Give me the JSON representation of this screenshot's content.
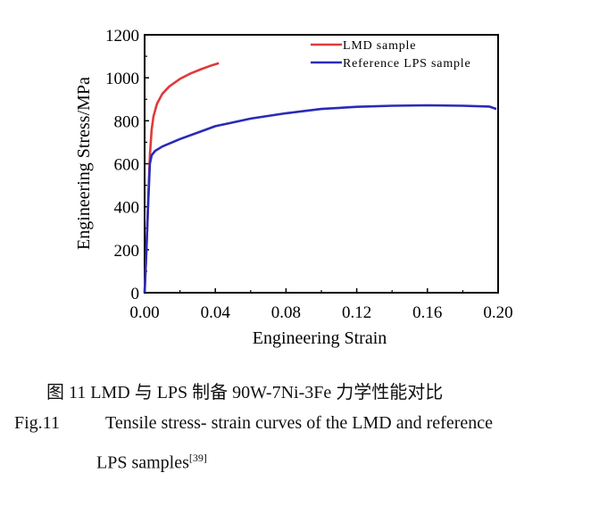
{
  "chart_data": {
    "type": "line",
    "title": "",
    "xlabel": "Engineering Strain",
    "ylabel": "Engineering Stress/MPa",
    "xlim": [
      0,
      0.2
    ],
    "ylim": [
      0,
      1200
    ],
    "xticks": [
      "0.00",
      "0.04",
      "0.08",
      "0.12",
      "0.16",
      "0.20"
    ],
    "xtick_values": [
      0,
      0.04,
      0.08,
      0.12,
      0.16,
      0.2
    ],
    "yticks": [
      "0",
      "200",
      "400",
      "600",
      "800",
      "1000",
      "1200"
    ],
    "ytick_values": [
      0,
      200,
      400,
      600,
      800,
      1000,
      1200
    ],
    "grid": false,
    "legend_placement": "top-right",
    "series": [
      {
        "name": "LMD sample",
        "color": "#e0393a",
        "x": [
          0,
          0.001,
          0.002,
          0.003,
          0.004,
          0.005,
          0.007,
          0.01,
          0.014,
          0.02,
          0.026,
          0.032,
          0.038,
          0.042
        ],
        "y": [
          0,
          200,
          420,
          640,
          760,
          820,
          880,
          925,
          960,
          995,
          1020,
          1040,
          1058,
          1068
        ]
      },
      {
        "name": "Reference LPS sample",
        "color": "#2a2ab8",
        "x": [
          0,
          0.001,
          0.002,
          0.003,
          0.004,
          0.006,
          0.01,
          0.02,
          0.03,
          0.04,
          0.06,
          0.08,
          0.1,
          0.12,
          0.14,
          0.16,
          0.18,
          0.195,
          0.199
        ],
        "y": [
          0,
          200,
          420,
          600,
          640,
          660,
          680,
          715,
          745,
          775,
          810,
          835,
          855,
          865,
          870,
          872,
          870,
          866,
          855
        ]
      }
    ]
  },
  "caption": {
    "cn": "图 11   LMD 与 LPS 制备 90W-7Ni-3Fe 力学性能对比",
    "fig_label": "Fig.11",
    "en_line1": "Tensile stress- strain curves of the LMD and reference",
    "en_line2": "LPS samples",
    "ref": "[39]"
  }
}
